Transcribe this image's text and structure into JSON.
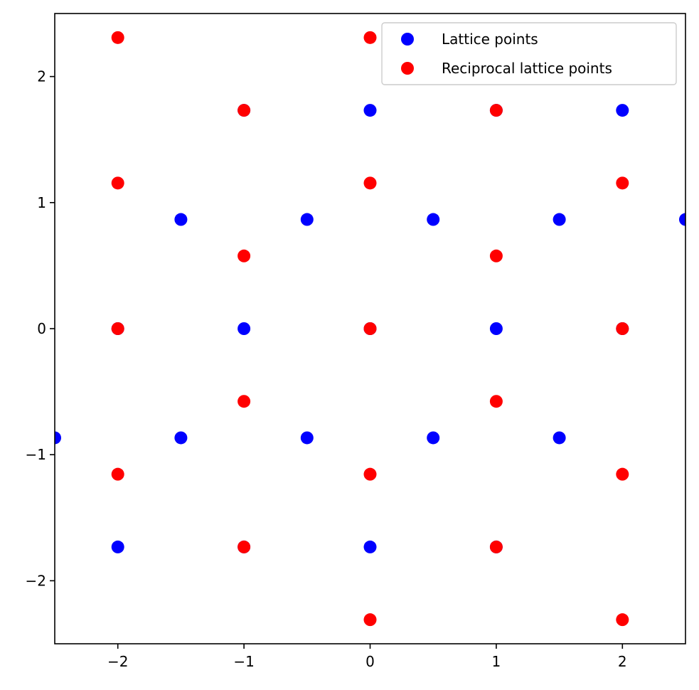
{
  "chart_data": {
    "type": "scatter",
    "title": "",
    "xlabel": "",
    "ylabel": "",
    "xlim": [
      -2.5,
      2.5
    ],
    "ylim": [
      -2.5,
      2.5
    ],
    "grid": false,
    "legend_position": "top-right",
    "x_ticks": [
      {
        "value": -2,
        "label": "−2"
      },
      {
        "value": -1,
        "label": "−1"
      },
      {
        "value": 0,
        "label": "0"
      },
      {
        "value": 1,
        "label": "1"
      },
      {
        "value": 2,
        "label": "2"
      }
    ],
    "y_ticks": [
      {
        "value": -2,
        "label": "−2"
      },
      {
        "value": -1,
        "label": "−1"
      },
      {
        "value": 0,
        "label": "0"
      },
      {
        "value": 1,
        "label": "1"
      },
      {
        "value": 2,
        "label": "2"
      }
    ],
    "series": [
      {
        "name": "Lattice points",
        "color": "#0000ff",
        "points": [
          {
            "x": -2,
            "y": -1.732
          },
          {
            "x": -1,
            "y": -1.732
          },
          {
            "x": 0,
            "y": -1.732
          },
          {
            "x": 1,
            "y": -1.732
          },
          {
            "x": -2.5,
            "y": -0.866
          },
          {
            "x": -1.5,
            "y": -0.866
          },
          {
            "x": -0.5,
            "y": -0.866
          },
          {
            "x": 0.5,
            "y": -0.866
          },
          {
            "x": 1.5,
            "y": -0.866
          },
          {
            "x": -2,
            "y": 0
          },
          {
            "x": -1,
            "y": 0
          },
          {
            "x": 0,
            "y": 0
          },
          {
            "x": 1,
            "y": 0
          },
          {
            "x": 2,
            "y": 0
          },
          {
            "x": -1.5,
            "y": 0.866
          },
          {
            "x": -0.5,
            "y": 0.866
          },
          {
            "x": 0.5,
            "y": 0.866
          },
          {
            "x": 1.5,
            "y": 0.866
          },
          {
            "x": 2.5,
            "y": 0.866
          },
          {
            "x": -1,
            "y": 1.732
          },
          {
            "x": 0,
            "y": 1.732
          },
          {
            "x": 1,
            "y": 1.732
          },
          {
            "x": 2,
            "y": 1.732
          }
        ]
      },
      {
        "name": "Reciprocal lattice points",
        "color": "#ff0000",
        "points": [
          {
            "x": 0,
            "y": -2.309
          },
          {
            "x": 2,
            "y": -2.309
          },
          {
            "x": -1,
            "y": -1.732
          },
          {
            "x": 1,
            "y": -1.732
          },
          {
            "x": -2,
            "y": -1.155
          },
          {
            "x": 0,
            "y": -1.155
          },
          {
            "x": 2,
            "y": -1.155
          },
          {
            "x": -1,
            "y": -0.577
          },
          {
            "x": 1,
            "y": -0.577
          },
          {
            "x": -2,
            "y": 0
          },
          {
            "x": 0,
            "y": 0
          },
          {
            "x": 2,
            "y": 0
          },
          {
            "x": -1,
            "y": 0.577
          },
          {
            "x": 1,
            "y": 0.577
          },
          {
            "x": -2,
            "y": 1.155
          },
          {
            "x": 0,
            "y": 1.155
          },
          {
            "x": 2,
            "y": 1.155
          },
          {
            "x": -1,
            "y": 1.732
          },
          {
            "x": 1,
            "y": 1.732
          },
          {
            "x": -2,
            "y": 2.309
          },
          {
            "x": 0,
            "y": 2.309
          }
        ]
      }
    ]
  }
}
